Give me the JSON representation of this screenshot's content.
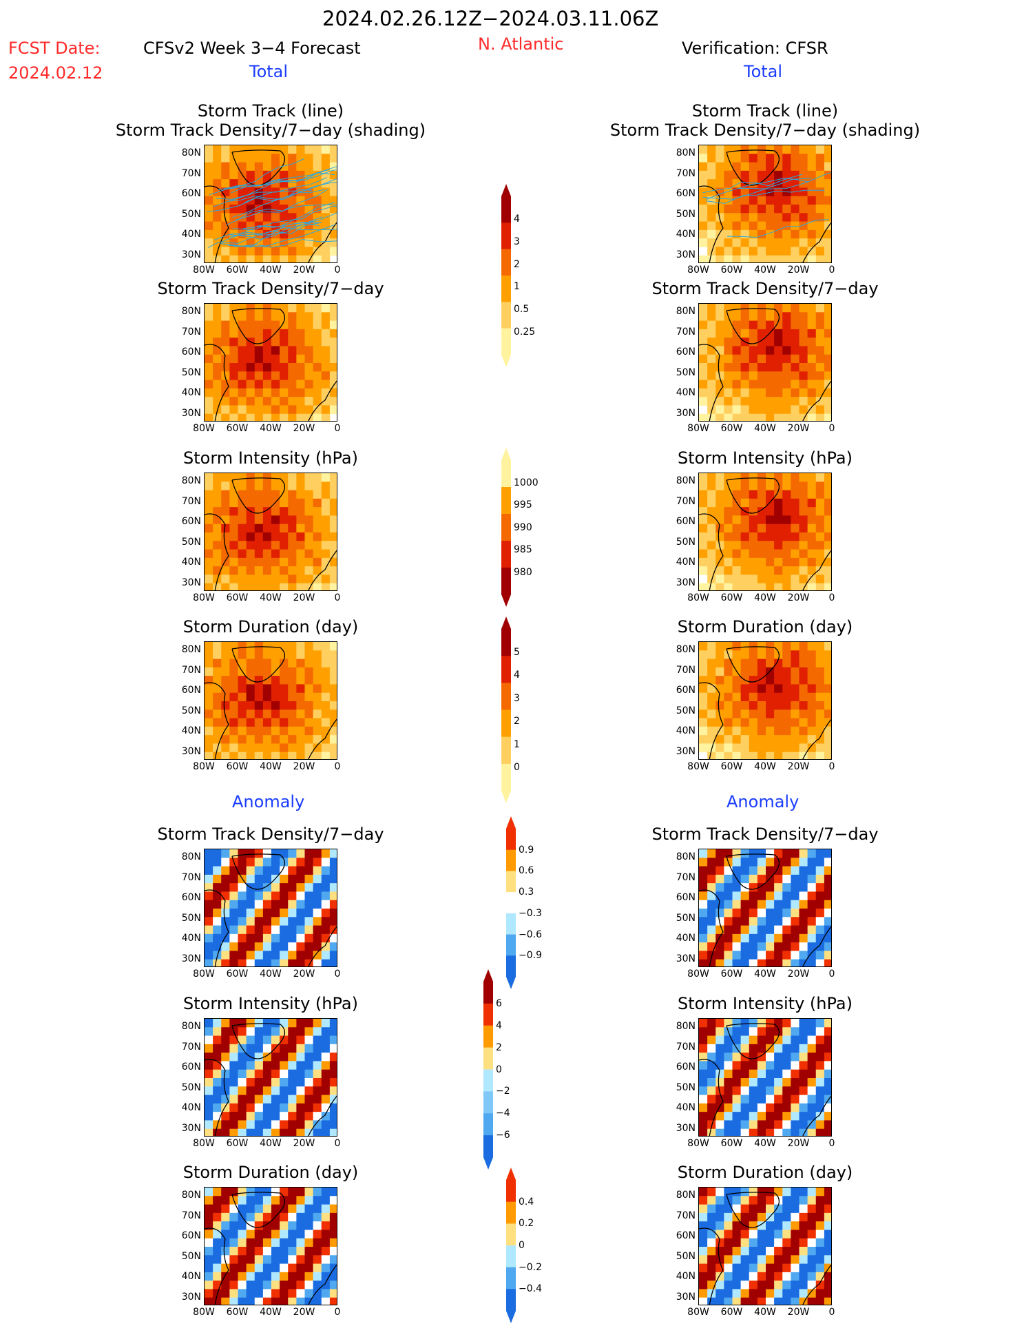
{
  "header": {
    "period": "2024.02.26.12Z−2024.03.11.06Z",
    "fcst_label": "FCST Date:",
    "fcst_date": "2024.02.12",
    "model_title": "CFSv2 Week 3−4 Forecast",
    "region": "N. Atlantic",
    "verification": "Verification: CFSR",
    "left_section": "Total",
    "right_section": "Total",
    "left_anomaly": "Anomaly",
    "right_anomaly": "Anomaly"
  },
  "panel_titles": {
    "track_line": "Storm Track (line)",
    "track_shading": "Storm Track Density/7−day (shading)",
    "density": "Storm Track Density/7−day",
    "intensity": "Storm Intensity (hPa)",
    "duration": "Storm Duration (day)"
  },
  "axes": {
    "y_ticks": [
      "80N",
      "70N",
      "60N",
      "50N",
      "40N",
      "30N"
    ],
    "x_ticks": [
      "80W",
      "60W",
      "40W",
      "20W",
      "0"
    ]
  },
  "colorbars": {
    "density_total": {
      "labels": [
        "4",
        "3",
        "2",
        "1",
        "0.5",
        "0.25"
      ],
      "colors": [
        "#a00000",
        "#e02000",
        "#f46a00",
        "#ffa000",
        "#ffd060",
        "#fff3a0"
      ]
    },
    "intensity_total": {
      "labels": [
        "1000",
        "995",
        "990",
        "985",
        "980"
      ],
      "colors": [
        "#fff3a0",
        "#ffa000",
        "#f46a00",
        "#e02000",
        "#a00000"
      ]
    },
    "duration_total": {
      "labels": [
        "5",
        "4",
        "3",
        "2",
        "1",
        "0"
      ],
      "colors": [
        "#a00000",
        "#e02000",
        "#f46a00",
        "#ffa000",
        "#ffd060",
        "#fff3a0"
      ]
    },
    "density_anom": {
      "labels": [
        "0.9",
        "0.6",
        "0.3",
        "−0.3",
        "−0.6",
        "−0.9"
      ],
      "colors": [
        "#f03000",
        "#ff9a00",
        "#ffe080",
        "#ffffff",
        "#b0e8ff",
        "#50a8f0",
        "#1a6ce0"
      ]
    },
    "intensity_anom": {
      "labels": [
        "6",
        "4",
        "2",
        "0",
        "−2",
        "−4",
        "−6"
      ],
      "colors": [
        "#a00000",
        "#f03000",
        "#ff9a00",
        "#ffe080",
        "#b0e8ff",
        "#80c8f8",
        "#50a8f0",
        "#1a6ce0"
      ]
    },
    "duration_anom": {
      "labels": [
        "0.4",
        "0.2",
        "0",
        "−0.2",
        "−0.4"
      ],
      "colors": [
        "#f03000",
        "#ff9a00",
        "#ffe080",
        "#b0e8ff",
        "#50a8f0",
        "#1a6ce0"
      ]
    }
  },
  "chart_data": [
    {
      "type": "heatmap",
      "title": "Storm Track (line) / Storm Track Density/7-day (shading)",
      "source": "CFSv2 forecast",
      "colorbar": "density_total"
    },
    {
      "type": "heatmap",
      "title": "Storm Track (line) / Storm Track Density/7-day (shading)",
      "source": "CFSR verification",
      "colorbar": "density_total"
    },
    {
      "type": "heatmap",
      "title": "Storm Track Density/7-day",
      "source": "CFSv2 forecast",
      "colorbar": "density_total"
    },
    {
      "type": "heatmap",
      "title": "Storm Track Density/7-day",
      "source": "CFSR verification",
      "colorbar": "density_total"
    },
    {
      "type": "heatmap",
      "title": "Storm Intensity (hPa)",
      "source": "CFSv2 forecast",
      "colorbar": "intensity_total"
    },
    {
      "type": "heatmap",
      "title": "Storm Intensity (hPa)",
      "source": "CFSR verification",
      "colorbar": "intensity_total"
    },
    {
      "type": "heatmap",
      "title": "Storm Duration (day)",
      "source": "CFSv2 forecast",
      "colorbar": "duration_total"
    },
    {
      "type": "heatmap",
      "title": "Storm Duration (day)",
      "source": "CFSR verification",
      "colorbar": "duration_total"
    },
    {
      "type": "heatmap",
      "title": "Storm Track Density/7-day (Anomaly)",
      "source": "CFSv2 forecast",
      "colorbar": "density_anom"
    },
    {
      "type": "heatmap",
      "title": "Storm Track Density/7-day (Anomaly)",
      "source": "CFSR verification",
      "colorbar": "density_anom"
    },
    {
      "type": "heatmap",
      "title": "Storm Intensity (hPa) (Anomaly)",
      "source": "CFSv2 forecast",
      "colorbar": "intensity_anom"
    },
    {
      "type": "heatmap",
      "title": "Storm Intensity (hPa) (Anomaly)",
      "source": "CFSR verification",
      "colorbar": "intensity_anom"
    },
    {
      "type": "heatmap",
      "title": "Storm Duration (day) (Anomaly)",
      "source": "CFSv2 forecast",
      "colorbar": "duration_anom"
    },
    {
      "type": "heatmap",
      "title": "Storm Duration (day) (Anomaly)",
      "source": "CFSR verification",
      "colorbar": "duration_anom"
    }
  ]
}
